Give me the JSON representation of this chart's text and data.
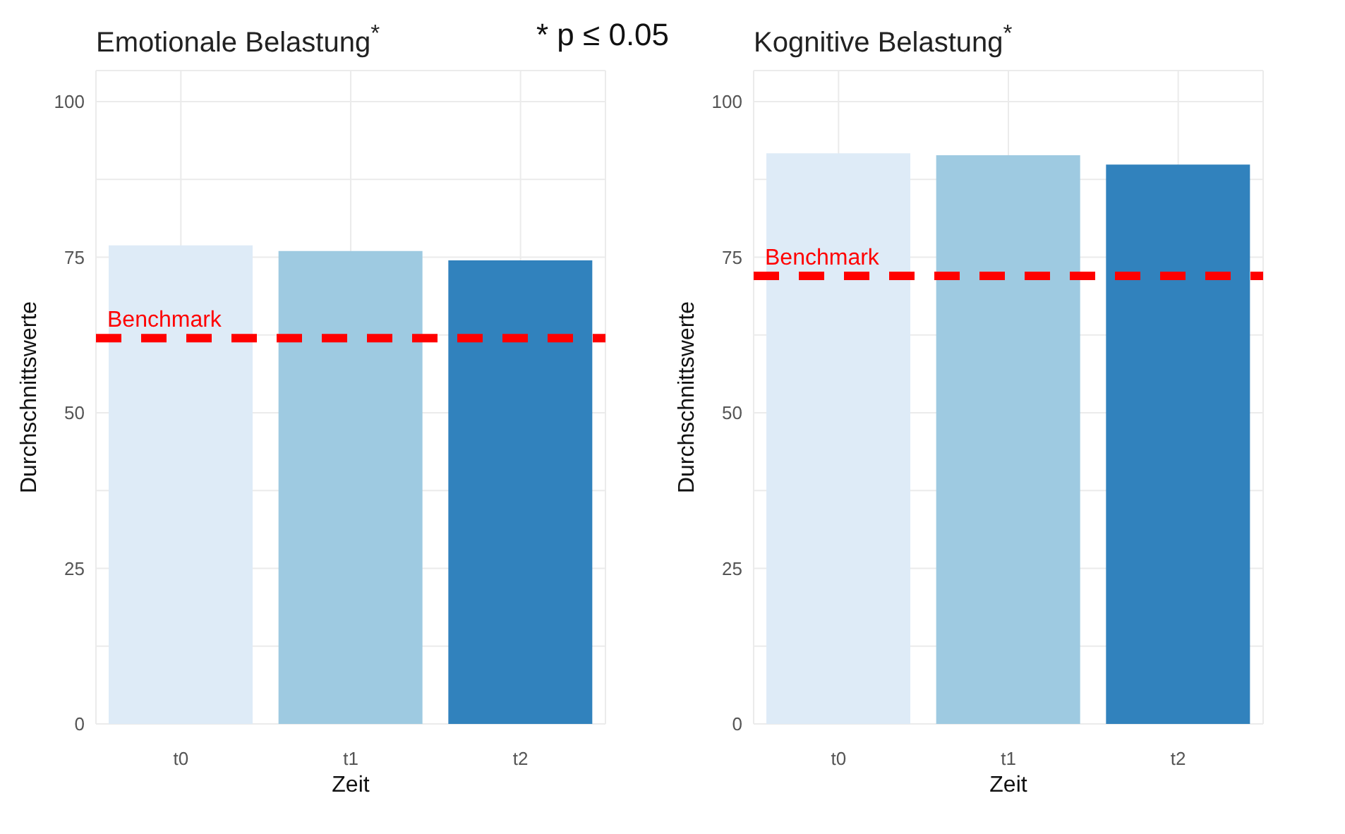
{
  "chart_data": [
    {
      "type": "bar",
      "title": "Emotionale Belastung$^{*}$",
      "annotations": [
        "* p ≤ 0.05"
      ],
      "xlabel": "Zeit",
      "ylabel": "Durchschnittswerte",
      "categories": [
        "t0",
        "t1",
        "t2"
      ],
      "values": [
        76.9,
        76.0,
        74.5
      ],
      "colors": [
        "#deebf7",
        "#9ecae1",
        "#3182bd"
      ],
      "ylim": [
        0,
        105
      ],
      "yticks": [
        0,
        {
          "value": 12.5,
          "label": null
        },
        25,
        {
          "value": 37.5,
          "label": null
        },
        50,
        {
          "value": 62.5,
          "label": null
        },
        75,
        {
          "value": 87.5,
          "label": null
        },
        100
      ],
      "grid": true,
      "ref_lines": [
        {
          "axis": "y",
          "value": 62,
          "label": "Benchmark",
          "color": "#ff0000",
          "line_style": "dashed"
        }
      ]
    },
    {
      "type": "bar",
      "title": "Kognitive Belastung$^{*}$",
      "xlabel": "Zeit",
      "ylabel": "Durchschnittswerte",
      "categories": [
        "t0",
        "t1",
        "t2"
      ],
      "values": [
        91.7,
        91.4,
        89.9
      ],
      "colors": [
        "#deebf7",
        "#9ecae1",
        "#3182bd"
      ],
      "ylim": [
        0,
        105
      ],
      "yticks": [
        0,
        {
          "value": 12.5,
          "label": null
        },
        25,
        {
          "value": 37.5,
          "label": null
        },
        50,
        {
          "value": 62.5,
          "label": null
        },
        75,
        {
          "value": 87.5,
          "label": null
        },
        100
      ],
      "grid": true,
      "ref_lines": [
        {
          "axis": "y",
          "value": 72,
          "label": "Benchmark",
          "color": "#ff0000",
          "line_style": "dashed"
        }
      ]
    }
  ]
}
